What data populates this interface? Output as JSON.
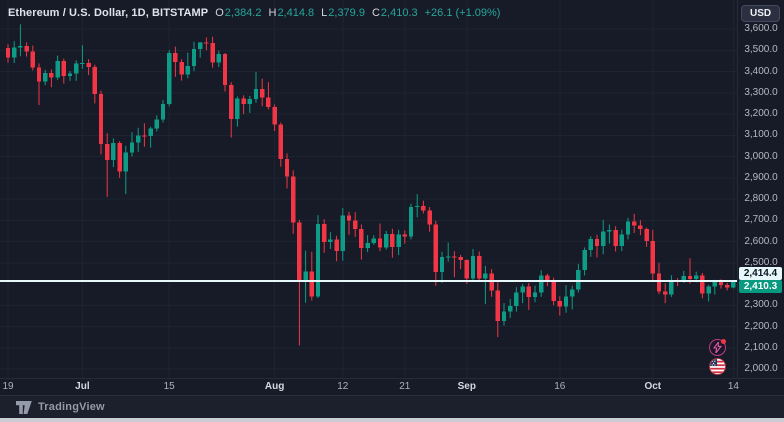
{
  "header": {
    "title": "Ethereum / U.S. Dollar, 1D, BITSTAMP",
    "ohlc": [
      {
        "label": "O",
        "value": "2,384.2"
      },
      {
        "label": "H",
        "value": "2,414.8"
      },
      {
        "label": "L",
        "value": "2,379.9"
      },
      {
        "label": "C",
        "value": "2,410.3"
      }
    ],
    "change": "+26.1 (+1.09%)"
  },
  "price_axis": {
    "currency_button": "USD",
    "ticks": [
      {
        "label": "3,600.0",
        "value": 3600
      },
      {
        "label": "3,500.0",
        "value": 3500
      },
      {
        "label": "3,400.0",
        "value": 3400
      },
      {
        "label": "3,300.0",
        "value": 3300
      },
      {
        "label": "3,200.0",
        "value": 3200
      },
      {
        "label": "3,100.0",
        "value": 3100
      },
      {
        "label": "3,000.0",
        "value": 3000
      },
      {
        "label": "2,900.0",
        "value": 2900
      },
      {
        "label": "2,800.0",
        "value": 2800
      },
      {
        "label": "2,700.0",
        "value": 2700
      },
      {
        "label": "2,600.0",
        "value": 2600
      },
      {
        "label": "2,500.0",
        "value": 2500
      },
      {
        "label": "2,300.0",
        "value": 2300
      },
      {
        "label": "2,200.0",
        "value": 2200
      },
      {
        "label": "2,100.0",
        "value": 2100
      },
      {
        "label": "2,000.0",
        "value": 2000
      }
    ],
    "line_badge": {
      "label": "2,414.4",
      "value": 2414.4
    },
    "last_badge": {
      "label": "2,410.3",
      "value": 2410.3
    }
  },
  "time_axis": {
    "ticks": [
      {
        "label": "19",
        "day": 0,
        "month": false
      },
      {
        "label": "Jul",
        "day": 12,
        "month": true
      },
      {
        "label": "15",
        "day": 26,
        "month": false
      },
      {
        "label": "Aug",
        "day": 43,
        "month": true
      },
      {
        "label": "12",
        "day": 54,
        "month": false
      },
      {
        "label": "21",
        "day": 64,
        "month": false
      },
      {
        "label": "Sep",
        "day": 74,
        "month": true
      },
      {
        "label": "16",
        "day": 89,
        "month": false
      },
      {
        "label": "Oct",
        "day": 104,
        "month": true
      },
      {
        "label": "14",
        "day": 117,
        "month": false
      }
    ]
  },
  "footer": {
    "brand": "TradingView"
  },
  "icons": {
    "boost": "lightning-boost",
    "flag": "us-flag"
  },
  "colors": {
    "background": "#161b27",
    "grid": "#1e2331",
    "up": "#0e9c87",
    "down": "#f23645",
    "horizontal_line": "#e7f8fa",
    "axis_text": "#b4b8c2",
    "value_text": "#26a69a"
  },
  "chart_data": {
    "type": "candlestick",
    "title": "Ethereum / U.S. Dollar",
    "exchange": "BITSTAMP",
    "interval": "1D",
    "quote_currency": "USD",
    "date_range": [
      "Jun 19",
      "Oct 14"
    ],
    "ylim": [
      1963,
      3736
    ],
    "grid": true,
    "legend_position": "top-left",
    "horizontal_line_price": 2414.4,
    "last_price": 2410.3,
    "last_candle": {
      "open": 2384.2,
      "high": 2414.8,
      "low": 2379.9,
      "close": 2410.3,
      "change": 26.1,
      "change_pct": 1.09
    },
    "ohlc_order": [
      "open",
      "high",
      "low",
      "close"
    ],
    "candles": [
      [
        3510,
        3528,
        3442,
        3465
      ],
      [
        3465,
        3543,
        3440,
        3512
      ],
      [
        3512,
        3622,
        3472,
        3520
      ],
      [
        3520,
        3537,
        3470,
        3495
      ],
      [
        3495,
        3522,
        3405,
        3420
      ],
      [
        3420,
        3438,
        3242,
        3354
      ],
      [
        3354,
        3408,
        3336,
        3394
      ],
      [
        3394,
        3410,
        3326,
        3371
      ],
      [
        3371,
        3475,
        3361,
        3450
      ],
      [
        3450,
        3461,
        3343,
        3380
      ],
      [
        3380,
        3402,
        3356,
        3390
      ],
      [
        3390,
        3453,
        3356,
        3438
      ],
      [
        3438,
        3524,
        3413,
        3440
      ],
      [
        3440,
        3458,
        3383,
        3422
      ],
      [
        3422,
        3432,
        3250,
        3295
      ],
      [
        3295,
        3310,
        3010,
        3060
      ],
      [
        3060,
        3110,
        2810,
        2983
      ],
      [
        2983,
        3085,
        2950,
        3063
      ],
      [
        3063,
        3072,
        2900,
        2930
      ],
      [
        2930,
        3050,
        2823,
        3018
      ],
      [
        3018,
        3114,
        3000,
        3066
      ],
      [
        3066,
        3135,
        3022,
        3100
      ],
      [
        3100,
        3156,
        3046,
        3097
      ],
      [
        3097,
        3140,
        3042,
        3132
      ],
      [
        3132,
        3194,
        3118,
        3175
      ],
      [
        3175,
        3266,
        3160,
        3246
      ],
      [
        3246,
        3500,
        3236,
        3487
      ],
      [
        3487,
        3517,
        3375,
        3445
      ],
      [
        3445,
        3458,
        3357,
        3386
      ],
      [
        3386,
        3489,
        3368,
        3426
      ],
      [
        3426,
        3540,
        3402,
        3505
      ],
      [
        3505,
        3539,
        3465,
        3536
      ],
      [
        3536,
        3560,
        3500,
        3535
      ],
      [
        3535,
        3564,
        3418,
        3443
      ],
      [
        3443,
        3498,
        3421,
        3482
      ],
      [
        3482,
        3487,
        3306,
        3337
      ],
      [
        3337,
        3350,
        3089,
        3177
      ],
      [
        3177,
        3283,
        3140,
        3273
      ],
      [
        3273,
        3288,
        3200,
        3248
      ],
      [
        3248,
        3285,
        3205,
        3270
      ],
      [
        3270,
        3398,
        3253,
        3317
      ],
      [
        3317,
        3366,
        3237,
        3278
      ],
      [
        3278,
        3350,
        3222,
        3232
      ],
      [
        3232,
        3245,
        3120,
        3150
      ],
      [
        3150,
        3160,
        2952,
        2988
      ],
      [
        2988,
        3015,
        2850,
        2906
      ],
      [
        2906,
        2935,
        2636,
        2689
      ],
      [
        2689,
        2702,
        2111,
        2419
      ],
      [
        2419,
        2557,
        2312,
        2459
      ],
      [
        2459,
        2552,
        2322,
        2342
      ],
      [
        2342,
        2724,
        2334,
        2683
      ],
      [
        2683,
        2705,
        2547,
        2598
      ],
      [
        2598,
        2644,
        2565,
        2609
      ],
      [
        2609,
        2627,
        2507,
        2556
      ],
      [
        2556,
        2758,
        2510,
        2722
      ],
      [
        2722,
        2740,
        2632,
        2700
      ],
      [
        2700,
        2738,
        2622,
        2660
      ],
      [
        2660,
        2680,
        2515,
        2569
      ],
      [
        2569,
        2630,
        2550,
        2592
      ],
      [
        2592,
        2630,
        2584,
        2615
      ],
      [
        2615,
        2685,
        2555,
        2572
      ],
      [
        2572,
        2650,
        2562,
        2636
      ],
      [
        2636,
        2660,
        2524,
        2573
      ],
      [
        2573,
        2655,
        2536,
        2633
      ],
      [
        2633,
        2652,
        2590,
        2623
      ],
      [
        2623,
        2778,
        2610,
        2762
      ],
      [
        2762,
        2823,
        2714,
        2768
      ],
      [
        2768,
        2792,
        2732,
        2745
      ],
      [
        2745,
        2762,
        2646,
        2680
      ],
      [
        2680,
        2698,
        2392,
        2457
      ],
      [
        2457,
        2552,
        2405,
        2527
      ],
      [
        2527,
        2595,
        2505,
        2529
      ],
      [
        2529,
        2554,
        2432,
        2526
      ],
      [
        2526,
        2537,
        2470,
        2513
      ],
      [
        2513,
        2516,
        2400,
        2425
      ],
      [
        2425,
        2565,
        2415,
        2532
      ],
      [
        2532,
        2553,
        2410,
        2425
      ],
      [
        2425,
        2485,
        2305,
        2450
      ],
      [
        2450,
        2470,
        2340,
        2369
      ],
      [
        2369,
        2408,
        2150,
        2226
      ],
      [
        2226,
        2310,
        2205,
        2270
      ],
      [
        2270,
        2330,
        2240,
        2297
      ],
      [
        2297,
        2385,
        2270,
        2360
      ],
      [
        2360,
        2400,
        2310,
        2389
      ],
      [
        2389,
        2405,
        2278,
        2340
      ],
      [
        2340,
        2392,
        2315,
        2361
      ],
      [
        2361,
        2465,
        2340,
        2440
      ],
      [
        2440,
        2448,
        2390,
        2417
      ],
      [
        2417,
        2430,
        2300,
        2320
      ],
      [
        2320,
        2342,
        2252,
        2295
      ],
      [
        2295,
        2395,
        2265,
        2341
      ],
      [
        2341,
        2392,
        2280,
        2375
      ],
      [
        2375,
        2495,
        2360,
        2465
      ],
      [
        2465,
        2572,
        2440,
        2561
      ],
      [
        2561,
        2625,
        2528,
        2612
      ],
      [
        2612,
        2632,
        2525,
        2580
      ],
      [
        2580,
        2702,
        2540,
        2647
      ],
      [
        2647,
        2680,
        2590,
        2653
      ],
      [
        2653,
        2672,
        2553,
        2580
      ],
      [
        2580,
        2655,
        2555,
        2632
      ],
      [
        2632,
        2712,
        2610,
        2695
      ],
      [
        2695,
        2730,
        2640,
        2675
      ],
      [
        2675,
        2700,
        2630,
        2658
      ],
      [
        2658,
        2665,
        2575,
        2603
      ],
      [
        2603,
        2655,
        2410,
        2450
      ],
      [
        2450,
        2500,
        2352,
        2365
      ],
      [
        2365,
        2403,
        2310,
        2350
      ],
      [
        2350,
        2441,
        2339,
        2415
      ],
      [
        2415,
        2428,
        2390,
        2414
      ],
      [
        2414,
        2462,
        2405,
        2437
      ],
      [
        2437,
        2521,
        2401,
        2423
      ],
      [
        2423,
        2458,
        2407,
        2441
      ],
      [
        2441,
        2452,
        2333,
        2355
      ],
      [
        2355,
        2395,
        2318,
        2388
      ],
      [
        2388,
        2420,
        2350,
        2410
      ],
      [
        2410,
        2422,
        2378,
        2395
      ],
      [
        2395,
        2405,
        2370,
        2384
      ],
      [
        2384.2,
        2414.8,
        2379.9,
        2410.3
      ]
    ]
  }
}
